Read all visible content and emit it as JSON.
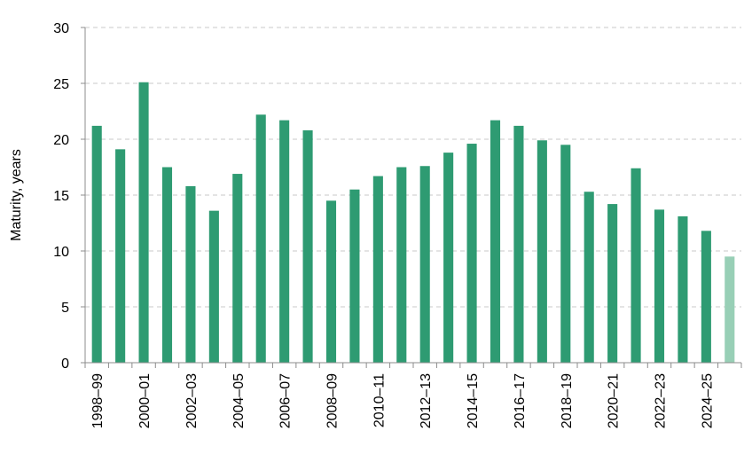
{
  "chart_data": {
    "type": "bar",
    "title": "",
    "xlabel": "",
    "ylabel": "Maturity, years",
    "ylim": [
      0,
      30
    ],
    "yticks": [
      0,
      5,
      10,
      15,
      20,
      25,
      30
    ],
    "grid": true,
    "legend": "none",
    "categories": [
      "1998–99",
      "1999–00",
      "2000–01",
      "2001–02",
      "2002–03",
      "2003–04",
      "2004–05",
      "2005–06",
      "2006–07",
      "2007–08",
      "2008–09",
      "2009–10",
      "2010–11",
      "2011–12",
      "2012–13",
      "2013–14",
      "2014–15",
      "2015–16",
      "2016–17",
      "2017–18",
      "2018–19",
      "2019–20",
      "2020–21",
      "2021–22",
      "2022–23",
      "2023–24",
      "2024–25",
      "2025–26"
    ],
    "tick_labels": [
      "1998–99",
      "",
      "2000–01",
      "",
      "2002–03",
      "",
      "2004–05",
      "",
      "2006–07",
      "",
      "2008–09",
      "",
      "2010–11",
      "",
      "2012–13",
      "",
      "2014–15",
      "",
      "2016–17",
      "",
      "2018–19",
      "",
      "2020–21",
      "",
      "2022–23",
      "",
      "2024–25",
      ""
    ],
    "values": [
      21.2,
      19.1,
      25.1,
      17.5,
      15.8,
      13.6,
      16.9,
      22.2,
      21.7,
      20.8,
      14.5,
      15.5,
      16.7,
      17.5,
      17.6,
      18.8,
      19.6,
      21.7,
      21.2,
      19.9,
      19.5,
      15.3,
      14.2,
      17.4,
      13.7,
      13.1,
      11.8,
      9.5
    ],
    "colors": {
      "bar": "#2e9b72",
      "highlight_bar": "#98cfb6",
      "grid": "#c8c8c8",
      "axis": "#8c8c8c"
    },
    "highlight_index": 27
  }
}
